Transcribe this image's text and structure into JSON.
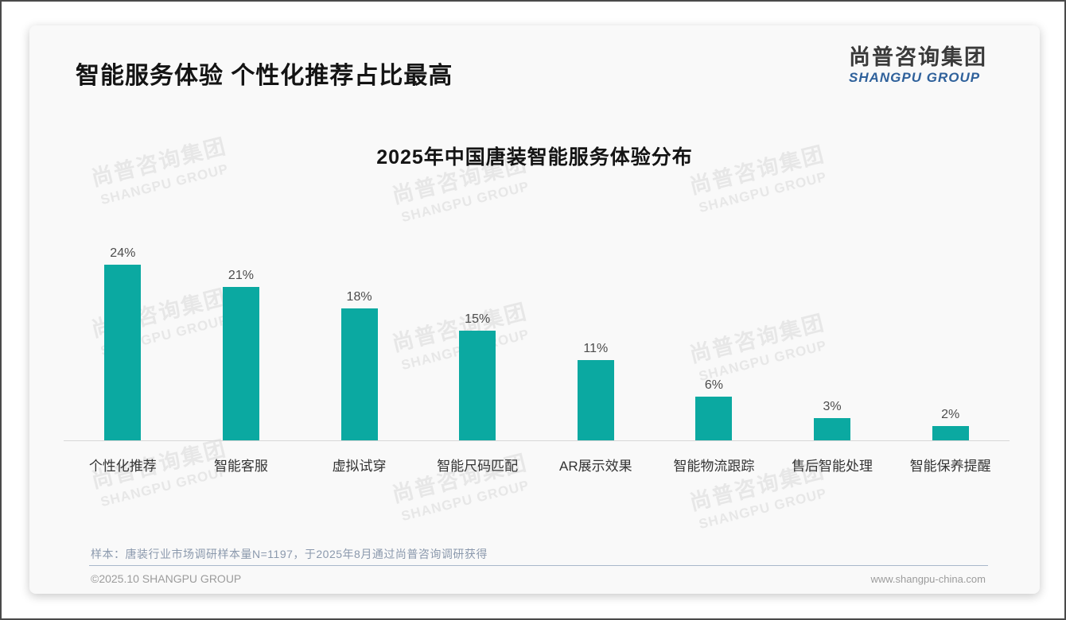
{
  "page": {
    "title": "智能服务体验 个性化推荐占比最高",
    "logo": {
      "cn": "尚普咨询集团",
      "en": "SHANGPU GROUP"
    },
    "watermark": {
      "line1": "尚普咨询集团",
      "line2": "SHANGPU GROUP"
    },
    "footnote": "样本：唐装行业市场调研样本量N=1197，于2025年8月通过尚普咨询调研获得",
    "copyright": "©2025.10 SHANGPU GROUP",
    "website": "www.shangpu-china.com"
  },
  "colors": {
    "bar": "#0ba9a1",
    "logo_blue": "#2f619b",
    "divider": "#a9b8cb",
    "footnote_text": "#8b99ad",
    "card_bg": "#f9f9f9",
    "watermark": "#e7e7e7"
  },
  "chart_data": {
    "type": "bar",
    "title": "2025年中国唐装智能服务体验分布",
    "categories": [
      "个性化推荐",
      "智能客服",
      "虚拟试穿",
      "智能尺码匹配",
      "AR展示效果",
      "智能物流跟踪",
      "售后智能处理",
      "智能保养提醒"
    ],
    "values": [
      24,
      21,
      18,
      15,
      11,
      6,
      3,
      2
    ],
    "unit": "%",
    "bar_color": "#0ba9a1",
    "xlabel": "",
    "ylabel": "",
    "ylim": [
      0,
      24
    ],
    "grid": false,
    "legend": false,
    "value_labels_shown": true
  }
}
